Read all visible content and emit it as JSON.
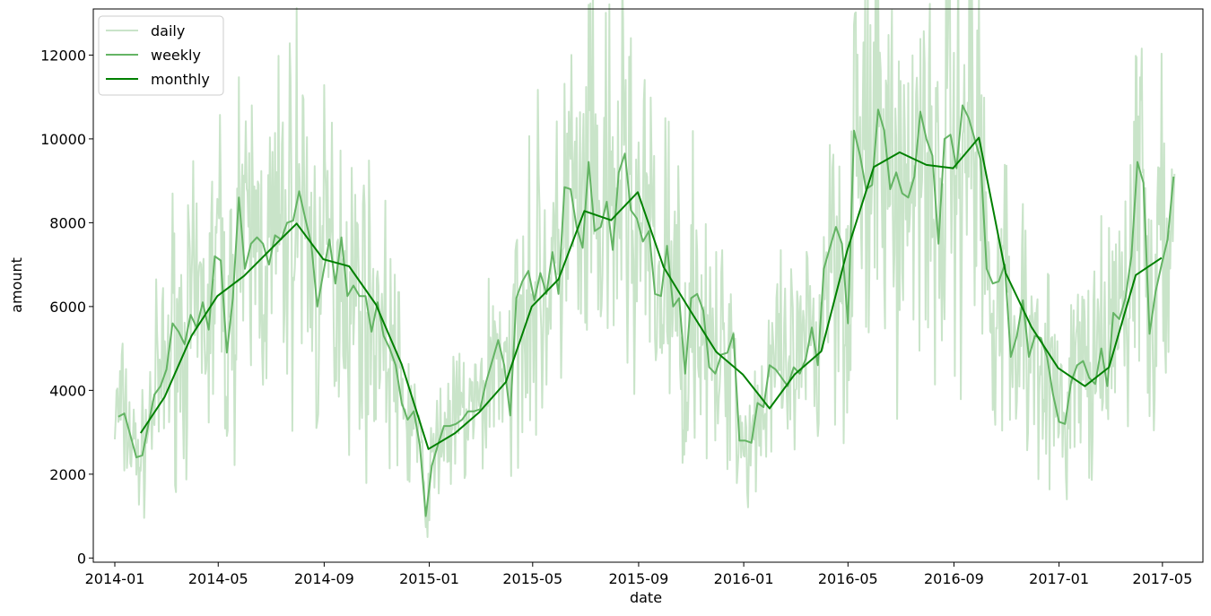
{
  "chart_data": {
    "type": "line",
    "title": "",
    "xlabel": "date",
    "ylabel": "amount",
    "x_tick_labels": [
      "2014-01",
      "2014-05",
      "2014-09",
      "2015-01",
      "2015-05",
      "2015-09",
      "2016-01",
      "2016-05",
      "2016-09",
      "2017-01",
      "2017-05"
    ],
    "y_ticks": [
      0,
      2000,
      4000,
      6000,
      8000,
      10000,
      12000
    ],
    "ylim": [
      -100,
      13100
    ],
    "xlim": [
      "2013-12-07",
      "2017-06-17"
    ],
    "grid": false,
    "legend_position": "top-left",
    "series": [
      {
        "name": "daily",
        "color": "#c9e4c9",
        "style": "dense daily noisy series",
        "values_note": "daily values oscillating around weekly series with ±30% noise",
        "x": [],
        "values": []
      },
      {
        "name": "weekly",
        "color": "#64b464",
        "x": [
          "2014-01-05",
          "2014-01-12",
          "2014-01-19",
          "2014-01-26",
          "2014-02-02",
          "2014-02-09",
          "2014-02-16",
          "2014-02-23",
          "2014-03-02",
          "2014-03-09",
          "2014-03-16",
          "2014-03-23",
          "2014-03-30",
          "2014-04-06",
          "2014-04-13",
          "2014-04-20",
          "2014-04-27",
          "2014-05-04",
          "2014-05-11",
          "2014-05-18",
          "2014-05-25",
          "2014-06-01",
          "2014-06-08",
          "2014-06-15",
          "2014-06-22",
          "2014-06-29",
          "2014-07-06",
          "2014-07-13",
          "2014-07-20",
          "2014-07-27",
          "2014-08-03",
          "2014-08-10",
          "2014-08-17",
          "2014-08-24",
          "2014-08-31",
          "2014-09-07",
          "2014-09-14",
          "2014-09-21",
          "2014-09-28",
          "2014-10-05",
          "2014-10-12",
          "2014-10-19",
          "2014-10-26",
          "2014-11-02",
          "2014-11-09",
          "2014-11-16",
          "2014-11-23",
          "2014-11-30",
          "2014-12-07",
          "2014-12-14",
          "2014-12-21",
          "2014-12-28",
          "2015-01-04",
          "2015-01-11",
          "2015-01-18",
          "2015-01-25",
          "2015-02-01",
          "2015-02-08",
          "2015-02-15",
          "2015-02-22",
          "2015-03-01",
          "2015-03-08",
          "2015-03-15",
          "2015-03-22",
          "2015-03-29",
          "2015-04-05",
          "2015-04-12",
          "2015-04-19",
          "2015-04-26",
          "2015-05-03",
          "2015-05-10",
          "2015-05-17",
          "2015-05-24",
          "2015-05-31",
          "2015-06-07",
          "2015-06-14",
          "2015-06-21",
          "2015-06-28",
          "2015-07-05",
          "2015-07-12",
          "2015-07-19",
          "2015-07-26",
          "2015-08-02",
          "2015-08-09",
          "2015-08-16",
          "2015-08-23",
          "2015-08-30",
          "2015-09-06",
          "2015-09-13",
          "2015-09-20",
          "2015-09-27",
          "2015-10-04",
          "2015-10-11",
          "2015-10-18",
          "2015-10-25",
          "2015-11-01",
          "2015-11-08",
          "2015-11-15",
          "2015-11-22",
          "2015-11-29",
          "2015-12-06",
          "2015-12-13",
          "2015-12-20",
          "2015-12-27",
          "2016-01-03",
          "2016-01-10",
          "2016-01-17",
          "2016-01-24",
          "2016-01-31",
          "2016-02-07",
          "2016-02-14",
          "2016-02-21",
          "2016-02-28",
          "2016-03-06",
          "2016-03-13",
          "2016-03-20",
          "2016-03-27",
          "2016-04-03",
          "2016-04-10",
          "2016-04-17",
          "2016-04-24",
          "2016-05-01",
          "2016-05-08",
          "2016-05-15",
          "2016-05-22",
          "2016-05-29",
          "2016-06-05",
          "2016-06-12",
          "2016-06-19",
          "2016-06-26",
          "2016-07-03",
          "2016-07-10",
          "2016-07-17",
          "2016-07-24",
          "2016-07-31",
          "2016-08-07",
          "2016-08-14",
          "2016-08-21",
          "2016-08-28",
          "2016-09-04",
          "2016-09-11",
          "2016-09-18",
          "2016-09-25",
          "2016-10-02",
          "2016-10-09",
          "2016-10-16",
          "2016-10-23",
          "2016-10-30",
          "2016-11-06",
          "2016-11-13",
          "2016-11-20",
          "2016-11-27",
          "2016-12-04",
          "2016-12-11",
          "2016-12-18",
          "2016-12-25",
          "2017-01-01",
          "2017-01-08",
          "2017-01-15",
          "2017-01-22",
          "2017-01-29",
          "2017-02-05",
          "2017-02-12",
          "2017-02-19",
          "2017-02-26",
          "2017-03-05",
          "2017-03-12",
          "2017-03-19",
          "2017-03-26",
          "2017-04-02",
          "2017-04-09",
          "2017-04-16",
          "2017-04-23",
          "2017-04-30",
          "2017-05-07",
          "2017-05-14"
        ],
        "values": [
          3370,
          3450,
          2930,
          2400,
          2450,
          3200,
          3900,
          4100,
          4500,
          5600,
          5400,
          5100,
          5800,
          5500,
          6100,
          5450,
          7200,
          7100,
          4900,
          6200,
          8600,
          6900,
          7500,
          7650,
          7500,
          7000,
          7700,
          7600,
          8000,
          8050,
          8750,
          8100,
          7500,
          6000,
          6800,
          7600,
          6550,
          7650,
          6250,
          6500,
          6250,
          6250,
          5400,
          6100,
          5300,
          5000,
          4600,
          3700,
          3300,
          3500,
          2700,
          1000,
          2200,
          2700,
          3150,
          3150,
          3200,
          3300,
          3500,
          3500,
          3550,
          4200,
          4700,
          5200,
          4600,
          3400,
          6200,
          6600,
          6850,
          6150,
          6800,
          6300,
          7300,
          6300,
          8850,
          8800,
          7900,
          7400,
          9450,
          7800,
          7900,
          8500,
          7350,
          9200,
          9650,
          8300,
          8100,
          7550,
          7800,
          6300,
          6250,
          7450,
          6000,
          6200,
          4400,
          6200,
          6300,
          5900,
          4550,
          4400,
          4850,
          4900,
          5350,
          2800,
          2800,
          2750,
          3700,
          3600,
          4600,
          4500,
          4300,
          4100,
          4550,
          4400,
          4750,
          5500,
          4600,
          6900,
          7400,
          7900,
          7500,
          5600,
          10200,
          9600,
          8800,
          8900,
          10700,
          10200,
          8800,
          9200,
          8700,
          8600,
          9100,
          10650,
          10000,
          9600,
          7500,
          10000,
          10100,
          9300,
          10800,
          10500,
          10000,
          9500,
          6900,
          6550,
          6600,
          7000,
          4800,
          5300,
          6150,
          4800,
          5300,
          5250,
          4800,
          3900,
          3250,
          3200,
          4200,
          4600,
          4700,
          4300,
          4150,
          5000,
          4100,
          5850,
          5700,
          6200,
          7200,
          9450,
          8950,
          5350,
          6350,
          7000,
          7600,
          9100
        ]
      },
      {
        "name": "monthly",
        "color": "#008000",
        "x": [
          "2014-01-31",
          "2014-02-28",
          "2014-03-31",
          "2014-04-30",
          "2014-05-31",
          "2014-06-30",
          "2014-07-31",
          "2014-08-31",
          "2014-09-30",
          "2014-10-31",
          "2014-11-30",
          "2014-12-31",
          "2015-01-31",
          "2015-02-28",
          "2015-03-31",
          "2015-04-30",
          "2015-05-31",
          "2015-06-30",
          "2015-07-31",
          "2015-08-31",
          "2015-09-30",
          "2015-10-31",
          "2015-11-30",
          "2015-12-31",
          "2016-01-31",
          "2016-02-29",
          "2016-03-31",
          "2016-04-30",
          "2016-05-31",
          "2016-06-30",
          "2016-07-31",
          "2016-08-31",
          "2016-09-30",
          "2016-10-31",
          "2016-11-30",
          "2016-12-31",
          "2017-01-31",
          "2017-02-28",
          "2017-03-31",
          "2017-04-30"
        ],
        "values": [
          2980,
          3850,
          5300,
          6250,
          6730,
          7350,
          7980,
          7130,
          6960,
          6050,
          4620,
          2600,
          2980,
          3480,
          4200,
          6000,
          6650,
          8280,
          8060,
          8730,
          6940,
          5900,
          4920,
          4380,
          3570,
          4380,
          4930,
          7330,
          9330,
          9680,
          9380,
          9300,
          10030,
          6800,
          5510,
          4530,
          4100,
          4550,
          6750,
          7160
        ]
      }
    ]
  }
}
